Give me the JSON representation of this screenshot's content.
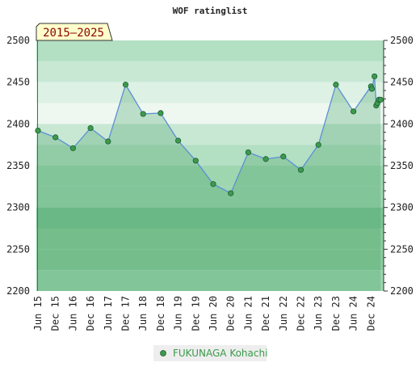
{
  "chart_data": {
    "type": "line",
    "title": "WOF ratinglist",
    "period_badge": "2015–2025",
    "ylim": [
      2200,
      2500
    ],
    "y_ticks": [
      2200,
      2250,
      2300,
      2350,
      2400,
      2450,
      2500
    ],
    "x_tick_labels": [
      "Jun 15",
      "Dec 15",
      "Jun 16",
      "Dec 16",
      "Jun 17",
      "Dec 17",
      "Jun 18",
      "Dec 18",
      "Jun 19",
      "Dec 19",
      "Jun 20",
      "Dec 20",
      "Jun 21",
      "Dec 21",
      "Jun 22",
      "Dec 22",
      "Jun 23",
      "Dec 23",
      "Jun 24",
      "Dec 24"
    ],
    "grid": true,
    "legend_position": "bottom-center",
    "series": [
      {
        "name": "FUKUNAGA Kohachi",
        "color": "#5b8fd6",
        "marker_color": "#3c9a4e",
        "x": [
          0,
          1,
          2,
          3,
          4,
          5,
          6,
          7,
          8,
          9,
          10,
          11,
          12,
          13,
          14,
          15,
          16,
          17,
          18,
          19,
          19.05,
          19.2,
          19.3,
          19.37,
          19.45,
          19.55
        ],
        "values": [
          2392,
          2384,
          2371,
          2395,
          2379,
          2447,
          2412,
          2413,
          2380,
          2356,
          2328,
          2317,
          2366,
          2358,
          2361,
          2345,
          2375,
          2447,
          2415,
          2445,
          2442,
          2457,
          2422,
          2425,
          2429,
          2429
        ]
      }
    ]
  },
  "colors": {
    "band_dark": "#7cc495",
    "band_mid": "#8ccc9f",
    "band_light": "#9ed6b0",
    "band_pale": "#b3dfc3",
    "band_paler": "#c8e8d4",
    "band_palest": "#ddf1e4",
    "badge_fill": "#ffffcc",
    "line": "#5b8fd6",
    "marker": "#3c9a4e",
    "legend_bg": "#eeeeee"
  }
}
